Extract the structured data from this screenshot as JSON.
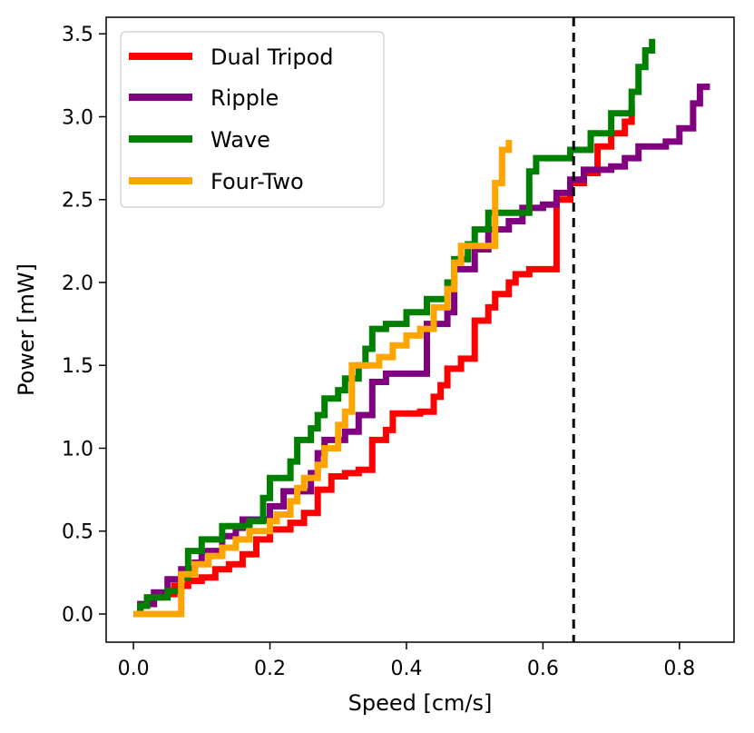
{
  "chart_data": {
    "type": "line",
    "title": "",
    "xlabel": "Speed [cm/s]",
    "ylabel": "Power [mW]",
    "xlim": [
      -0.04,
      0.88
    ],
    "ylim": [
      -0.17,
      3.6
    ],
    "xticks": [
      0.0,
      0.2,
      0.4,
      0.6,
      0.8
    ],
    "xtick_labels": [
      "0.0",
      "0.2",
      "0.4",
      "0.6",
      "0.8"
    ],
    "yticks": [
      0.0,
      0.5,
      1.0,
      1.5,
      2.0,
      2.5,
      3.0,
      3.5
    ],
    "ytick_labels": [
      "0.0",
      "0.5",
      "1.0",
      "1.5",
      "2.0",
      "2.5",
      "3.0",
      "3.5"
    ],
    "grid": false,
    "legend_position": "top-left",
    "vline": {
      "x": 0.645,
      "style": "dashed",
      "color": "#000000"
    },
    "series": [
      {
        "name": "Dual Tripod",
        "color": "#ff0000",
        "points": [
          [
            0.0,
            0.0
          ],
          [
            0.01,
            0.05
          ],
          [
            0.02,
            0.1
          ],
          [
            0.04,
            0.12
          ],
          [
            0.06,
            0.17
          ],
          [
            0.08,
            0.2
          ],
          [
            0.1,
            0.22
          ],
          [
            0.12,
            0.27
          ],
          [
            0.14,
            0.3
          ],
          [
            0.16,
            0.36
          ],
          [
            0.18,
            0.45
          ],
          [
            0.2,
            0.51
          ],
          [
            0.23,
            0.55
          ],
          [
            0.25,
            0.61
          ],
          [
            0.27,
            0.75
          ],
          [
            0.29,
            0.83
          ],
          [
            0.31,
            0.85
          ],
          [
            0.33,
            0.87
          ],
          [
            0.35,
            0.91
          ],
          [
            0.35,
            1.05
          ],
          [
            0.37,
            1.11
          ],
          [
            0.38,
            1.21
          ],
          [
            0.41,
            1.21
          ],
          [
            0.42,
            1.22
          ],
          [
            0.44,
            1.31
          ],
          [
            0.45,
            1.38
          ],
          [
            0.46,
            1.48
          ],
          [
            0.48,
            1.54
          ],
          [
            0.5,
            1.62
          ],
          [
            0.5,
            1.77
          ],
          [
            0.52,
            1.85
          ],
          [
            0.53,
            1.93
          ],
          [
            0.55,
            2.0
          ],
          [
            0.56,
            2.05
          ],
          [
            0.58,
            2.08
          ],
          [
            0.62,
            2.08
          ],
          [
            0.62,
            2.5
          ],
          [
            0.64,
            2.6
          ],
          [
            0.66,
            2.66
          ],
          [
            0.68,
            2.82
          ],
          [
            0.7,
            2.9
          ],
          [
            0.72,
            2.97
          ],
          [
            0.73,
            3.06
          ]
        ]
      },
      {
        "name": "Ripple",
        "color": "#800080",
        "points": [
          [
            0.0,
            0.0
          ],
          [
            0.01,
            0.06
          ],
          [
            0.03,
            0.13
          ],
          [
            0.05,
            0.21
          ],
          [
            0.07,
            0.27
          ],
          [
            0.09,
            0.31
          ],
          [
            0.1,
            0.38
          ],
          [
            0.13,
            0.47
          ],
          [
            0.15,
            0.52
          ],
          [
            0.16,
            0.57
          ],
          [
            0.2,
            0.65
          ],
          [
            0.22,
            0.74
          ],
          [
            0.25,
            0.74
          ],
          [
            0.26,
            0.85
          ],
          [
            0.27,
            0.97
          ],
          [
            0.28,
            1.05
          ],
          [
            0.31,
            1.1
          ],
          [
            0.33,
            1.2
          ],
          [
            0.35,
            1.4
          ],
          [
            0.37,
            1.45
          ],
          [
            0.42,
            1.45
          ],
          [
            0.43,
            1.75
          ],
          [
            0.46,
            1.82
          ],
          [
            0.47,
            2.08
          ],
          [
            0.5,
            2.2
          ],
          [
            0.52,
            2.32
          ],
          [
            0.55,
            2.37
          ],
          [
            0.57,
            2.45
          ],
          [
            0.6,
            2.47
          ],
          [
            0.62,
            2.54
          ],
          [
            0.64,
            2.62
          ],
          [
            0.66,
            2.68
          ],
          [
            0.7,
            2.7
          ],
          [
            0.72,
            2.75
          ],
          [
            0.74,
            2.82
          ],
          [
            0.78,
            2.85
          ],
          [
            0.8,
            2.93
          ],
          [
            0.82,
            3.08
          ],
          [
            0.83,
            3.18
          ],
          [
            0.84,
            3.2
          ]
        ]
      },
      {
        "name": "Wave",
        "color": "#008000",
        "points": [
          [
            0.0,
            0.0
          ],
          [
            0.01,
            0.05
          ],
          [
            0.02,
            0.1
          ],
          [
            0.05,
            0.14
          ],
          [
            0.07,
            0.22
          ],
          [
            0.08,
            0.38
          ],
          [
            0.1,
            0.45
          ],
          [
            0.13,
            0.53
          ],
          [
            0.17,
            0.56
          ],
          [
            0.19,
            0.7
          ],
          [
            0.2,
            0.82
          ],
          [
            0.23,
            0.92
          ],
          [
            0.24,
            1.05
          ],
          [
            0.26,
            1.12
          ],
          [
            0.27,
            1.2
          ],
          [
            0.28,
            1.3
          ],
          [
            0.3,
            1.35
          ],
          [
            0.31,
            1.42
          ],
          [
            0.33,
            1.5
          ],
          [
            0.34,
            1.6
          ],
          [
            0.35,
            1.72
          ],
          [
            0.37,
            1.75
          ],
          [
            0.4,
            1.82
          ],
          [
            0.43,
            1.9
          ],
          [
            0.46,
            2.0
          ],
          [
            0.47,
            2.14
          ],
          [
            0.49,
            2.23
          ],
          [
            0.5,
            2.32
          ],
          [
            0.52,
            2.42
          ],
          [
            0.57,
            2.42
          ],
          [
            0.58,
            2.67
          ],
          [
            0.59,
            2.75
          ],
          [
            0.64,
            2.8
          ],
          [
            0.67,
            2.9
          ],
          [
            0.7,
            3.02
          ],
          [
            0.73,
            3.15
          ],
          [
            0.74,
            3.3
          ],
          [
            0.75,
            3.4
          ],
          [
            0.76,
            3.47
          ]
        ]
      },
      {
        "name": "Four-Two",
        "color": "#ffa500",
        "points": [
          [
            0.0,
            0.0
          ],
          [
            0.06,
            0.0
          ],
          [
            0.07,
            0.24
          ],
          [
            0.09,
            0.3
          ],
          [
            0.11,
            0.35
          ],
          [
            0.13,
            0.4
          ],
          [
            0.15,
            0.45
          ],
          [
            0.17,
            0.5
          ],
          [
            0.2,
            0.56
          ],
          [
            0.21,
            0.6
          ],
          [
            0.23,
            0.68
          ],
          [
            0.24,
            0.76
          ],
          [
            0.25,
            0.82
          ],
          [
            0.27,
            0.9
          ],
          [
            0.28,
            1.0
          ],
          [
            0.3,
            1.14
          ],
          [
            0.31,
            1.22
          ],
          [
            0.32,
            1.5
          ],
          [
            0.34,
            1.5
          ],
          [
            0.36,
            1.55
          ],
          [
            0.38,
            1.62
          ],
          [
            0.4,
            1.68
          ],
          [
            0.42,
            1.72
          ],
          [
            0.44,
            1.85
          ],
          [
            0.46,
            1.96
          ],
          [
            0.47,
            2.12
          ],
          [
            0.48,
            2.22
          ],
          [
            0.53,
            2.22
          ],
          [
            0.53,
            2.6
          ],
          [
            0.54,
            2.8
          ],
          [
            0.55,
            2.86
          ]
        ]
      }
    ]
  }
}
